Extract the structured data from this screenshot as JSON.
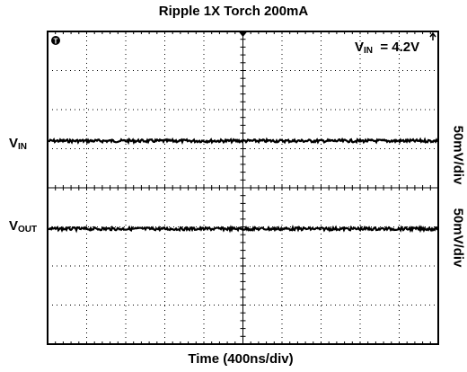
{
  "chart_data": {
    "type": "line",
    "title": "Ripple 1X Torch 200mA",
    "xlabel": "Time (400ns/div)",
    "ylabel": "",
    "grid": true,
    "x_divisions": 10,
    "y_divisions": 8,
    "annotation": {
      "main": "V",
      "sub": "IN",
      "value": "  = 4.2V"
    },
    "trigger_marker": "T",
    "series": [
      {
        "name_main": "V",
        "name_sub": "IN",
        "scale_label": "50mV/div",
        "level_div": 5.2
      },
      {
        "name_main": "V",
        "name_sub": "OUT",
        "scale_label": "50mV/div",
        "level_div": 2.95
      }
    ]
  },
  "colors": {
    "trace": "#000000",
    "grid": "#000000",
    "background": "#ffffff"
  }
}
